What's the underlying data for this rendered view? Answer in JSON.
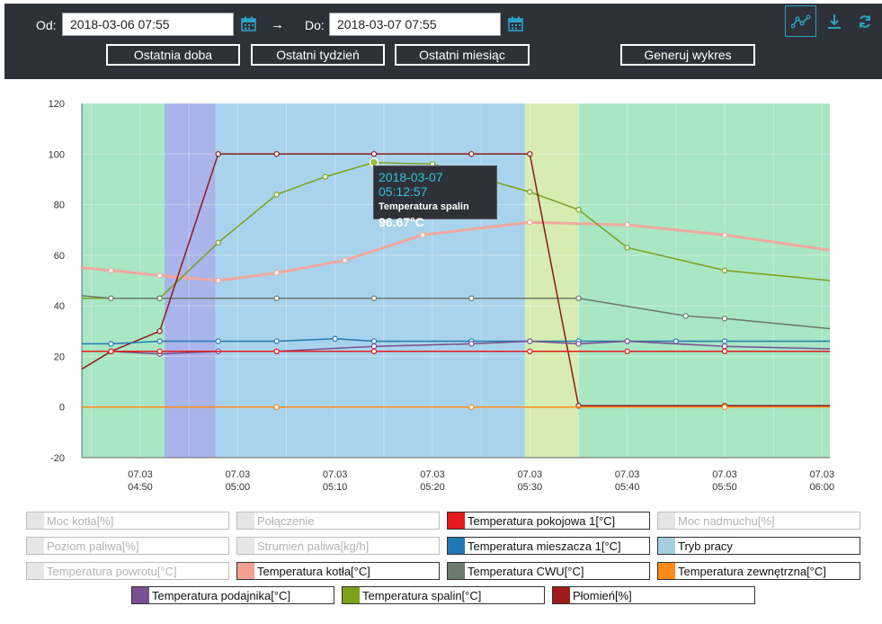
{
  "toolbar": {
    "from_label": "Od:",
    "from_value": "2018-03-06 07:55",
    "arrow": "→",
    "to_label": "Do:",
    "to_value": "2018-03-07 07:55",
    "buttons": [
      "Ostatnia doba",
      "Ostatni tydzień",
      "Ostatni miesiąc",
      "Generuj wykres"
    ],
    "icons": [
      "chart-line-icon",
      "download-icon",
      "refresh-icon"
    ],
    "accent": "#2aa3c3"
  },
  "tooltip": {
    "date": "2018-03-07 05:12:57",
    "series": "Temperatura spalin",
    "value": "96.67°C"
  },
  "legend": [
    {
      "label": "Moc kotła[%]",
      "color": "#e6e6e6",
      "active": false
    },
    {
      "label": "Połączenie",
      "color": "#e6e6e6",
      "active": false
    },
    {
      "label": "Temperatura pokojowa 1[°C]",
      "color": "#e41a1c",
      "active": true
    },
    {
      "label": "Moc nadmuchu[%]",
      "color": "#e6e6e6",
      "active": false
    },
    {
      "label": "Poziom paliwa[%]",
      "color": "#e6e6e6",
      "active": false
    },
    {
      "label": "Strumień paliwa[kg/h]",
      "color": "#e6e6e6",
      "active": false
    },
    {
      "label": "Temperatura mieszacza 1[°C]",
      "color": "#1f78b4",
      "active": true
    },
    {
      "label": "Tryb pracy",
      "color": "#a6cee3",
      "active": true
    },
    {
      "label": "Temperatura powrotu[°C]",
      "color": "#e6e6e6",
      "active": false
    },
    {
      "label": "Temperatura kotła[°C]",
      "color": "#f4a092",
      "active": true
    },
    {
      "label": "Temperatura CWU[°C]",
      "color": "#6b7b6b",
      "active": true
    },
    {
      "label": "Temperatura zewnętrzna[°C]",
      "color": "#ff8c1a",
      "active": true
    },
    {
      "label": "Temperatura podajnika[°C]",
      "color": "#7a4f8e",
      "active": true
    },
    {
      "label": "Temperatura spalin[°C]",
      "color": "#7aa21a",
      "active": true
    },
    {
      "label": "Płomień[%]",
      "color": "#a01c1c",
      "active": true
    }
  ],
  "chart_data": {
    "type": "line",
    "x_ticks": [
      "07.03 04:50",
      "07.03 05:00",
      "07.03 05:10",
      "07.03 05:20",
      "07.03 05:30",
      "07.03 05:40",
      "07.03 05:50",
      "07.03 06:00"
    ],
    "x_tick_minutes": [
      50,
      60,
      70,
      80,
      90,
      100,
      110,
      120
    ],
    "x_range_minutes": [
      44,
      120.8
    ],
    "ylim": [
      -20,
      120
    ],
    "y_ticks": [
      -20,
      0,
      20,
      40,
      60,
      80,
      100,
      120
    ],
    "background_bands": [
      {
        "from": 44,
        "to": 52.5,
        "color": "#a8e6c4"
      },
      {
        "from": 52.5,
        "to": 57.7,
        "color": "#aab3ea"
      },
      {
        "from": 57.7,
        "to": 89.5,
        "color": "#a9d3ec"
      },
      {
        "from": 89.5,
        "to": 95,
        "color": "#d6ecb0"
      },
      {
        "from": 95,
        "to": 120.8,
        "color": "#a8e6c4"
      }
    ],
    "series": [
      {
        "name": "Temperatura kotła[°C]",
        "color": "#f0a89e",
        "width": 3,
        "x": [
          44,
          47,
          52,
          58,
          64,
          71,
          79,
          90,
          100,
          110,
          120.8
        ],
        "y": [
          55,
          54,
          52,
          50,
          53,
          58,
          68,
          73,
          72,
          68,
          62
        ]
      },
      {
        "name": "Temperatura spalin[°C]",
        "color": "#7aa21a",
        "width": 1.5,
        "x": [
          44,
          52,
          58,
          64,
          69,
          74,
          80,
          90,
          95,
          100,
          110,
          120.8
        ],
        "y": [
          43,
          43,
          65,
          84,
          91,
          96.67,
          96,
          85,
          78,
          63,
          54,
          50
        ]
      },
      {
        "name": "Temperatura CWU[°C]",
        "color": "#6b7b6b",
        "width": 1.5,
        "x": [
          44,
          47,
          52,
          64,
          74,
          84,
          95,
          106,
          110,
          120.8
        ],
        "y": [
          44,
          43,
          43,
          43,
          43,
          43,
          43,
          36,
          35,
          31
        ]
      },
      {
        "name": "Płomień[%]",
        "color": "#8b1a1a",
        "width": 1.5,
        "x": [
          44,
          47,
          52,
          58,
          64,
          74,
          84,
          90,
          95,
          110,
          120.8
        ],
        "y": [
          15,
          22,
          30,
          100,
          100,
          100,
          100,
          100,
          0.5,
          0.5,
          0.5
        ]
      },
      {
        "name": "Temperatura mieszacza 1[°C]",
        "color": "#1f78b4",
        "width": 1.5,
        "x": [
          44,
          47,
          52,
          58,
          64,
          70,
          74,
          84,
          90,
          95,
          100,
          105,
          110,
          120.8
        ],
        "y": [
          25,
          25,
          26,
          26,
          26,
          27,
          26,
          26,
          26,
          26,
          26,
          26,
          26,
          26
        ]
      },
      {
        "name": "Temperatura podajnika[°C]",
        "color": "#7a4f8e",
        "width": 1.5,
        "x": [
          44,
          47,
          52,
          58,
          64,
          74,
          84,
          90,
          95,
          100,
          110,
          120.8
        ],
        "y": [
          22,
          22,
          21,
          22,
          22,
          24,
          25,
          26,
          25,
          26,
          24,
          23
        ]
      },
      {
        "name": "Temperatura pokojowa 1[°C]",
        "color": "#e41a1c",
        "width": 1.5,
        "x": [
          44,
          47,
          52,
          64,
          74,
          90,
          100,
          110,
          120.8
        ],
        "y": [
          22,
          22,
          22,
          22,
          22,
          22,
          22,
          22,
          22
        ]
      },
      {
        "name": "Temperatura zewnętrzna[°C]",
        "color": "#ff8c1a",
        "width": 1.5,
        "x": [
          44,
          64,
          84,
          110,
          120.8
        ],
        "y": [
          0,
          0,
          0,
          0,
          0
        ]
      }
    ]
  }
}
